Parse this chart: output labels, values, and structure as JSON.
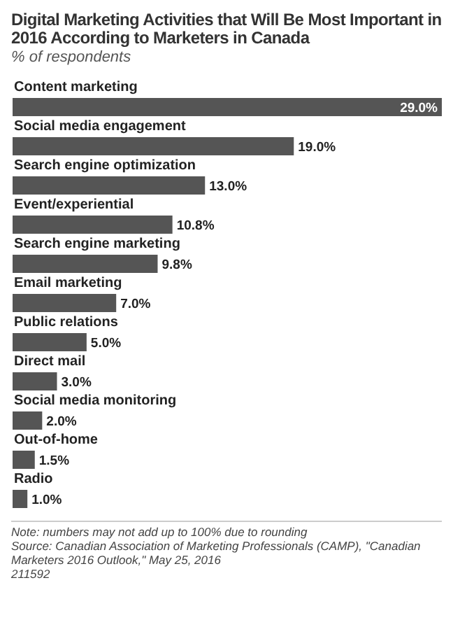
{
  "chart_data": {
    "type": "bar",
    "orientation": "horizontal",
    "title": "Digital Marketing Activities that Will Be Most Important in 2016 According to Marketers in Canada",
    "subtitle": "% of respondents",
    "categories": [
      "Content marketing",
      "Social media engagement",
      "Search engine optimization",
      "Event/experiential",
      "Search engine marketing",
      "Email marketing",
      "Public relations",
      "Direct mail",
      "Social media monitoring",
      "Out-of-home",
      "Radio"
    ],
    "values": [
      29.0,
      19.0,
      13.0,
      10.8,
      9.8,
      7.0,
      5.0,
      3.0,
      2.0,
      1.5,
      1.0
    ],
    "value_labels": [
      "29.0%",
      "19.0%",
      "13.0%",
      "10.8%",
      "9.8%",
      "7.0%",
      "5.0%",
      "3.0%",
      "2.0%",
      "1.5%",
      "1.0%"
    ],
    "color": "#555555",
    "annotations": [
      "Note: numbers may not add up to 100% due to rounding",
      "Source: Canadian Association of Marketing Professionals (CAMP), \"Canadian Marketers 2016 Outlook,\" May 25, 2016",
      "211592"
    ]
  }
}
